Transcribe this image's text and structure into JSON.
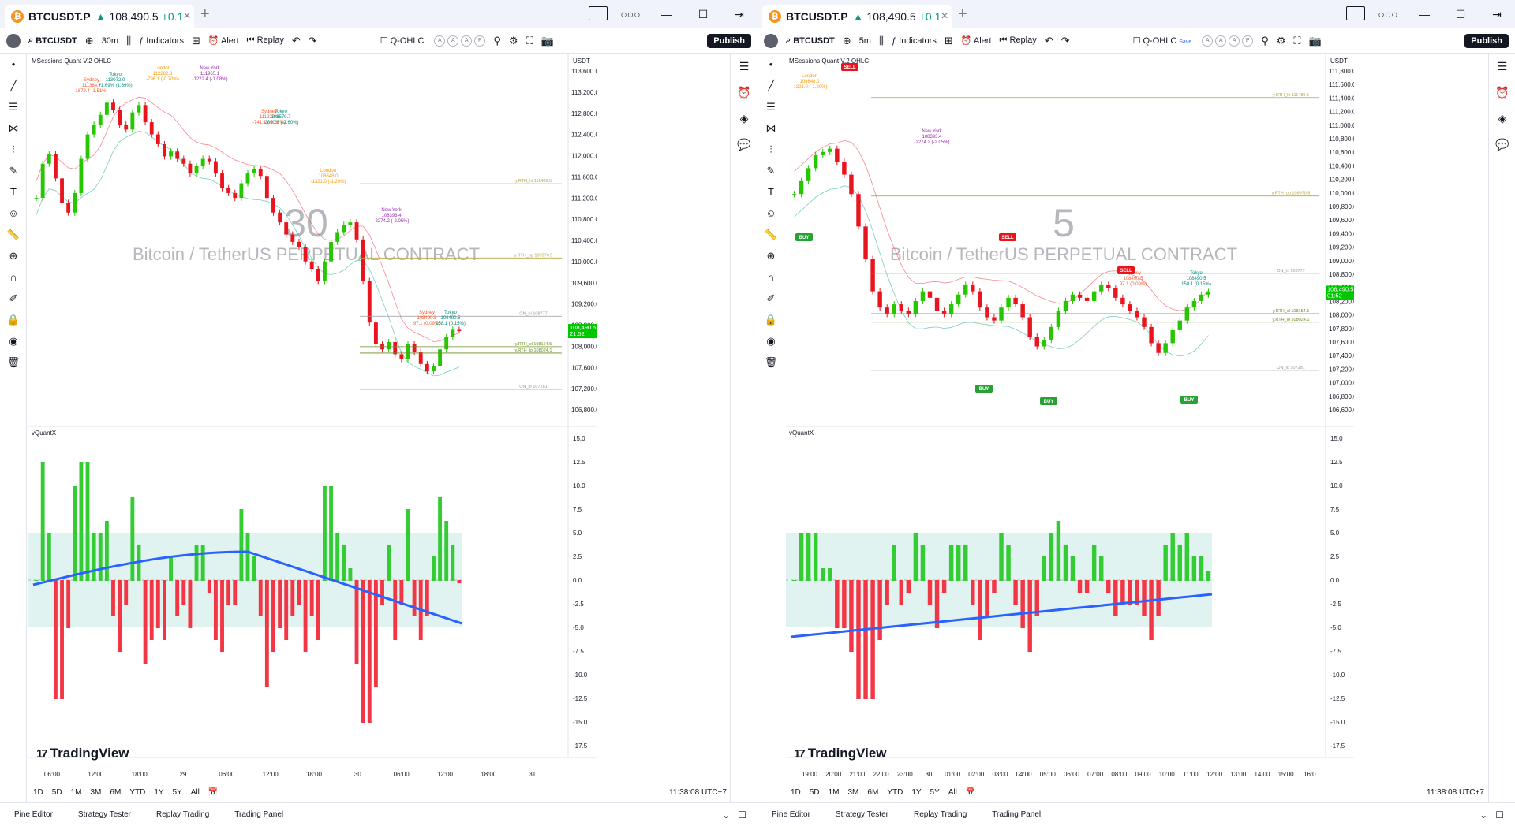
{
  "left": {
    "tab": {
      "symbol": "BTCUSDT.P",
      "arrow": "▲",
      "price": "108,490.5",
      "change": "+0.1"
    },
    "toolbar": {
      "symbol": "BTCUSDT",
      "interval": "30m",
      "indicators": "Indicators",
      "alert": "Alert",
      "replay": "Replay",
      "qohlc": "Q-OHLC",
      "publish": "Publish",
      "abcd": [
        "A",
        "A",
        "A",
        "P"
      ]
    },
    "main_indicator": "MSessions Quant V.2 OHLC",
    "osc_indicator": "vQuantX",
    "currency": "USDT",
    "watermark_interval": "30",
    "watermark_name": "Bitcoin / TetherUS PERPETUAL CONTRACT",
    "price_tag": {
      "value": "108,490.5",
      "time": "21:52"
    },
    "clock": "11:38:08 UTC+7",
    "ranges": [
      "1D",
      "5D",
      "1M",
      "3M",
      "6M",
      "YTD",
      "1Y",
      "5Y",
      "All"
    ],
    "bottom_tabs": [
      "Pine Editor",
      "Strategy Tester",
      "Replay Trading",
      "Trading Panel"
    ],
    "brand": "TradingView",
    "price_ticks": [
      "113,600.0",
      "113,200.0",
      "112,800.0",
      "112,400.0",
      "112,000.0",
      "111,600.0",
      "111,200.0",
      "110,800.0",
      "110,400.0",
      "110,000.0",
      "109,600.0",
      "109,200.0",
      "108,800.0",
      "108,000.0",
      "107,600.0",
      "107,200.0",
      "106,800.0"
    ],
    "osc_ticks": [
      "15.0",
      "12.5",
      "10.0",
      "7.5",
      "5.0",
      "2.5",
      "0.0",
      "-2.5",
      "-5.0",
      "-7.5",
      "-10.0",
      "-12.5",
      "-15.0",
      "-17.5"
    ],
    "time_ticks": [
      "06:00",
      "12:00",
      "18:00",
      "29",
      "06:00",
      "12:00",
      "18:00",
      "30",
      "06:00",
      "12:00",
      "18:00",
      "31"
    ],
    "levels": [
      {
        "label": "y.RTH_hi 111489.5",
        "color": "#b5a642"
      },
      {
        "label": "y.RTH_op 109970.5",
        "color": "#b5a642"
      },
      {
        "label": "ON_hi 108777",
        "color": "#9598a1"
      },
      {
        "label": "y.RTH_cl 108154.5",
        "color": "#6b8e23"
      },
      {
        "label": "y.RTH_lo 108024.1",
        "color": "#6b8e23"
      },
      {
        "label": "ON_lo 107281",
        "color": "#9598a1"
      }
    ],
    "sessions": [
      {
        "name": "Sydney",
        "price": "111384.7",
        "chg": "1679.4 (1.51%)",
        "color": "#ff5722"
      },
      {
        "name": "Tokyo",
        "price": "113072.0",
        "chg": "+1.69% (1.69%)",
        "color": "#00897b"
      },
      {
        "name": "London",
        "price": "112282.3",
        "chg": "-796.1 (-0.70%)",
        "color": "#ff9800"
      },
      {
        "name": "New York",
        "price": "111965.1",
        "chg": "-1222.4 (-1.08%)",
        "color": "#9c27b0"
      },
      {
        "name": "Sydney",
        "price": "111223.1",
        "chg": "-741.1 (-0.67%)",
        "color": "#ff5722"
      },
      {
        "name": "Tokyo",
        "price": "108579.7",
        "chg": "-2890.6 (-2.60%)",
        "color": "#00897b"
      },
      {
        "name": "London",
        "price": "108648.0",
        "chg": "-1321.0 (-1.20%)",
        "color": "#ff9800"
      },
      {
        "name": "New York",
        "price": "108393.4",
        "chg": "-2274.2 (-2.05%)",
        "color": "#9c27b0"
      },
      {
        "name": "Sydney",
        "price": "108490.5",
        "chg": "97.1 (0.09%)",
        "color": "#ff5722"
      },
      {
        "name": "Tokyo",
        "price": "108490.5",
        "chg": "158.1 (0.15%)",
        "color": "#00897b"
      }
    ]
  },
  "right": {
    "tab": {
      "symbol": "BTCUSDT.P",
      "arrow": "▲",
      "price": "108,490.5",
      "change": "+0.1"
    },
    "toolbar": {
      "symbol": "BTCUSDT",
      "interval": "5m",
      "indicators": "Indicators",
      "alert": "Alert",
      "replay": "Replay",
      "qohlc": "Q-OHLC",
      "publish": "Publish",
      "abcd": [
        "A",
        "A",
        "A",
        "P"
      ],
      "save": "Save"
    },
    "main_indicator": "MSessions Quant V.2 OHLC",
    "osc_indicator": "vQuantX",
    "currency": "USDT",
    "watermark_interval": "5",
    "watermark_name": "Bitcoin / TetherUS PERPETUAL CONTRACT",
    "price_tag": {
      "value": "108,490.5",
      "time": "01:52"
    },
    "clock": "11:38:08 UTC+7",
    "ranges": [
      "1D",
      "5D",
      "1M",
      "3M",
      "6M",
      "YTD",
      "1Y",
      "5Y",
      "All"
    ],
    "bottom_tabs": [
      "Pine Editor",
      "Strategy Tester",
      "Replay Trading",
      "Trading Panel"
    ],
    "brand": "TradingView",
    "price_ticks": [
      "111,800.0",
      "111,600.0",
      "111,400.0",
      "111,200.0",
      "111,000.0",
      "110,800.0",
      "110,600.0",
      "110,400.0",
      "110,200.0",
      "110,000.0",
      "109,800.0",
      "109,600.0",
      "109,400.0",
      "109,200.0",
      "109,000.0",
      "108,800.0",
      "108,600.0",
      "108,200.0",
      "108,000.0",
      "107,800.0",
      "107,600.0",
      "107,400.0",
      "107,200.0",
      "107,000.0",
      "106,800.0",
      "106,600.0"
    ],
    "osc_ticks": [
      "15.0",
      "12.5",
      "10.0",
      "7.5",
      "5.0",
      "2.5",
      "0.0",
      "-2.5",
      "-5.0",
      "-7.5",
      "-10.0",
      "-12.5",
      "-15.0",
      "-17.5"
    ],
    "time_ticks": [
      "19:00",
      "20:00",
      "21:00",
      "22:00",
      "23:00",
      "30",
      "01:00",
      "02:00",
      "03:00",
      "04:00",
      "05:00",
      "06:00",
      "07:00",
      "08:00",
      "09:00",
      "10:00",
      "11:00",
      "12:00",
      "13:00",
      "14:00",
      "15:00",
      "16:0"
    ],
    "levels": [
      {
        "label": "y.RTH_hi 111489.5",
        "color": "#b5a642"
      },
      {
        "label": "y.RTH_op 109970.5",
        "color": "#b5a642"
      },
      {
        "label": "ON_hi 108777",
        "color": "#9598a1"
      },
      {
        "label": "y.RTH_cl 108154.5",
        "color": "#6b8e23"
      },
      {
        "label": "y.RTH_lo 108024.1",
        "color": "#6b8e23"
      },
      {
        "label": "ON_lo 107281",
        "color": "#9598a1"
      }
    ],
    "sessions": [
      {
        "name": "London",
        "price": "108648.0",
        "chg": "-1321.0 (-1.20%)",
        "color": "#ff9800"
      },
      {
        "name": "New York",
        "price": "108393.4",
        "chg": "-2274.2 (-2.05%)",
        "color": "#9c27b0"
      },
      {
        "name": "Sydney",
        "price": "108490.5",
        "chg": "97.1 (0.09%)",
        "color": "#ff5722"
      },
      {
        "name": "Tokyo",
        "price": "108490.5",
        "chg": "158.1 (0.15%)",
        "color": "#00897b"
      }
    ],
    "signals": [
      "SELL",
      "SELL",
      "SELL",
      "BUY",
      "BUY",
      "BUY",
      "BUY"
    ]
  },
  "chart_data": [
    {
      "type": "candlestick",
      "title": "BTCUSDT.P 30m",
      "ylim": [
        106700,
        113800
      ],
      "close_series": [
        111200,
        111900,
        112100,
        111600,
        111100,
        110900,
        111300,
        112000,
        112500,
        112700,
        112900,
        113150,
        113000,
        112700,
        112600,
        112950,
        113100,
        112750,
        112500,
        112300,
        112050,
        112150,
        112000,
        111900,
        111700,
        111850,
        112000,
        111950,
        111700,
        111400,
        111300,
        111200,
        111500,
        111700,
        111800,
        111650,
        111200,
        110900,
        110700,
        110450,
        110300,
        110200,
        109900,
        109750,
        109500,
        109900,
        110300,
        110500,
        110650,
        110700,
        110350,
        109500,
        108650,
        108200,
        108100,
        108250,
        108000,
        107900,
        108200,
        108050,
        107800,
        107650,
        107750,
        108100,
        108350,
        108500,
        108490
      ],
      "oscillator": {
        "ylim": [
          -17.5,
          15.0
        ],
        "bands": [
          5.0,
          -5.0
        ],
        "signal_line_start": -0.5,
        "signal_line_peak": 3.0,
        "signal_line_end": -4.6
      }
    },
    {
      "type": "candlestick",
      "title": "BTCUSDT.P 5m",
      "ylim": [
        106550,
        111900
      ],
      "close_series": [
        110000,
        110200,
        110400,
        110600,
        110650,
        110700,
        110500,
        110300,
        110000,
        109500,
        109000,
        108500,
        108250,
        108150,
        108300,
        108200,
        108150,
        108350,
        108500,
        108400,
        108200,
        108150,
        108300,
        108450,
        108600,
        108500,
        108250,
        108100,
        108050,
        108250,
        108400,
        108300,
        108100,
        107800,
        107650,
        107750,
        107950,
        108200,
        108350,
        108450,
        108400,
        108350,
        108500,
        108600,
        108550,
        108400,
        108300,
        108200,
        108100,
        107950,
        107700,
        107550,
        107700,
        107900,
        108050,
        108250,
        108350,
        108450,
        108490
      ],
      "oscillator": {
        "ylim": [
          -17.5,
          15.0
        ],
        "bands": [
          5.0,
          -5.0
        ],
        "signal_line_start": -6.0,
        "signal_line_end": -1.5
      }
    }
  ]
}
